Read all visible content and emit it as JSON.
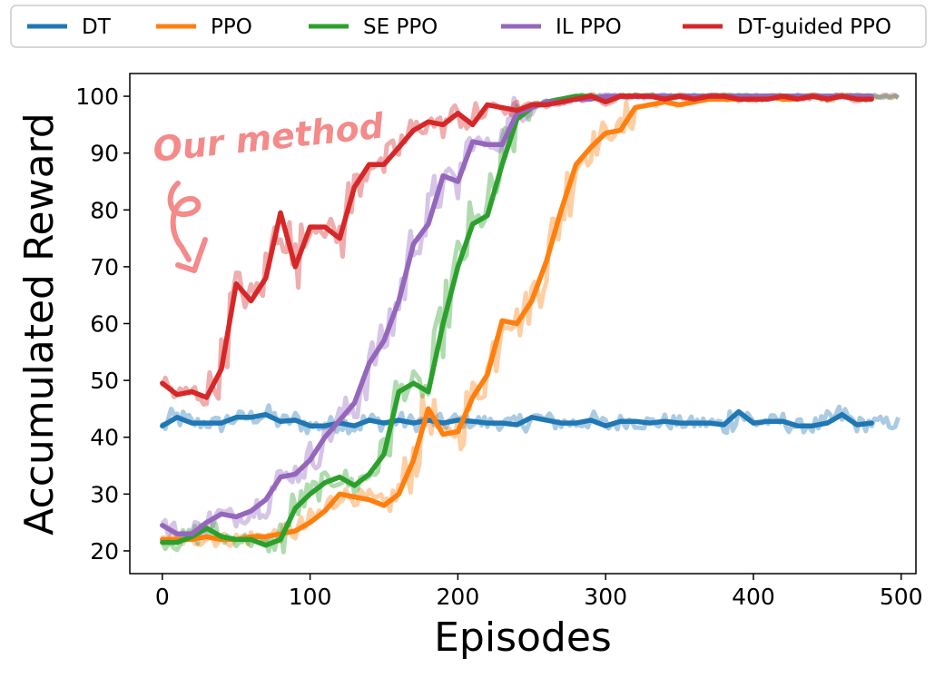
{
  "chart_data": {
    "type": "line",
    "title": "",
    "xlabel": "Episodes",
    "ylabel": "Accumulated Reward",
    "xlim": [
      -22,
      510
    ],
    "ylim": [
      16,
      104
    ],
    "xticks": [
      0,
      100,
      200,
      300,
      400,
      500
    ],
    "yticks": [
      20,
      30,
      40,
      50,
      60,
      70,
      80,
      90,
      100
    ],
    "grid": false,
    "legend": {
      "placement": "top-outside",
      "columns": 5
    },
    "annotation": {
      "text": "Our method",
      "arrow": "curly-arrow-down",
      "color": "#f58a8a"
    },
    "series": [
      {
        "name": "DT",
        "color": "#1f77b4",
        "x": [
          0,
          10,
          20,
          30,
          40,
          50,
          60,
          70,
          80,
          90,
          100,
          110,
          120,
          130,
          140,
          150,
          160,
          170,
          180,
          190,
          200,
          210,
          220,
          230,
          240,
          250,
          260,
          270,
          280,
          290,
          300,
          310,
          320,
          330,
          340,
          350,
          360,
          370,
          380,
          390,
          400,
          410,
          420,
          430,
          440,
          450,
          460,
          470,
          480
        ],
        "y": [
          42,
          43.5,
          42.5,
          42.5,
          42.5,
          43.5,
          43.5,
          44,
          42.8,
          43,
          42,
          42,
          42.5,
          42,
          43,
          42.5,
          43,
          42.5,
          43,
          42.5,
          43,
          42.8,
          42.5,
          42.5,
          42.2,
          43.5,
          43,
          42.5,
          42.5,
          43,
          42,
          42.8,
          42.8,
          42.5,
          42.8,
          42.5,
          42.5,
          42.5,
          42.2,
          44.5,
          42.5,
          42.8,
          42.8,
          42,
          42,
          42.5,
          44,
          42.2,
          42.5
        ]
      },
      {
        "name": "PPO",
        "color": "#ff7f0e",
        "x": [
          0,
          10,
          20,
          30,
          40,
          50,
          60,
          70,
          80,
          90,
          100,
          110,
          120,
          130,
          140,
          150,
          160,
          170,
          180,
          190,
          200,
          210,
          220,
          230,
          240,
          250,
          260,
          270,
          280,
          290,
          300,
          310,
          320,
          330,
          340,
          350,
          360,
          370,
          380,
          390,
          400,
          410,
          420,
          430,
          440,
          450,
          460,
          470,
          480
        ],
        "y": [
          22,
          22,
          22,
          22.5,
          22,
          22,
          22.5,
          22.5,
          23,
          23.5,
          25,
          27,
          30,
          29.5,
          29,
          28,
          30,
          36,
          45,
          40.5,
          41,
          47,
          51,
          60.5,
          60,
          64,
          71,
          80,
          88,
          91,
          93.5,
          94,
          98,
          98.5,
          99,
          98.5,
          99,
          99.5,
          99.5,
          99.5,
          99.5,
          100,
          99.5,
          99.5,
          100,
          99.5,
          100,
          100,
          100
        ]
      },
      {
        "name": "SE PPO",
        "color": "#2ca02c",
        "x": [
          0,
          10,
          20,
          30,
          40,
          50,
          60,
          70,
          80,
          90,
          100,
          110,
          120,
          130,
          140,
          150,
          160,
          170,
          180,
          190,
          200,
          210,
          220,
          230,
          240,
          250,
          260,
          270,
          280,
          290,
          300,
          310,
          320,
          330,
          340,
          350,
          360,
          370,
          380,
          390,
          400,
          410,
          420,
          430,
          440,
          450,
          460,
          470,
          480
        ],
        "y": [
          21.5,
          21.5,
          22.5,
          24,
          22.5,
          22,
          22,
          21,
          22,
          27.5,
          30,
          32,
          33,
          31.5,
          33.5,
          37,
          48,
          49.5,
          48,
          60,
          70,
          77.5,
          79,
          88,
          96,
          98,
          99,
          99.5,
          100,
          100,
          99.5,
          100,
          100,
          100,
          100,
          100,
          100,
          100,
          100,
          100,
          100,
          100,
          100,
          100,
          100,
          100,
          100,
          100,
          100
        ]
      },
      {
        "name": "IL PPO",
        "color": "#9467bd",
        "x": [
          0,
          10,
          20,
          30,
          40,
          50,
          60,
          70,
          80,
          90,
          100,
          110,
          120,
          130,
          140,
          150,
          160,
          170,
          180,
          190,
          200,
          210,
          220,
          230,
          240,
          250,
          260,
          270,
          280,
          290,
          300,
          310,
          320,
          330,
          340,
          350,
          360,
          370,
          380,
          390,
          400,
          410,
          420,
          430,
          440,
          450,
          460,
          470,
          480
        ],
        "y": [
          24.5,
          23,
          23,
          25,
          26.5,
          26,
          27,
          29,
          33,
          33.5,
          36,
          40,
          43,
          46,
          53,
          57,
          64,
          74,
          77.5,
          86,
          85,
          92,
          91.5,
          91.5,
          97,
          98,
          99,
          99,
          99.5,
          99.5,
          100,
          100,
          100,
          100,
          100,
          100,
          100,
          100,
          100,
          100,
          100,
          100,
          100,
          100,
          100,
          100,
          100,
          100,
          100
        ]
      },
      {
        "name": "DT-guided PPO",
        "color": "#d62728",
        "x": [
          0,
          10,
          20,
          30,
          40,
          50,
          60,
          70,
          80,
          90,
          100,
          110,
          120,
          130,
          140,
          150,
          160,
          170,
          180,
          190,
          200,
          210,
          220,
          230,
          240,
          250,
          260,
          270,
          280,
          290,
          300,
          310,
          320,
          330,
          340,
          350,
          360,
          370,
          380,
          390,
          400,
          410,
          420,
          430,
          440,
          450,
          460,
          470,
          480
        ],
        "y": [
          49.5,
          47.5,
          48,
          47,
          52,
          67,
          64,
          68,
          79.5,
          70,
          77,
          77,
          75,
          84,
          88,
          88,
          91,
          94,
          95.5,
          95,
          97,
          95,
          98.5,
          98,
          97.5,
          98.5,
          98.5,
          99,
          99.5,
          100,
          99,
          100,
          100,
          100,
          99.5,
          100,
          99.5,
          100,
          100,
          99.5,
          99.5,
          99.5,
          100,
          99.5,
          100,
          99.5,
          100,
          99.5,
          99.5
        ]
      }
    ]
  }
}
